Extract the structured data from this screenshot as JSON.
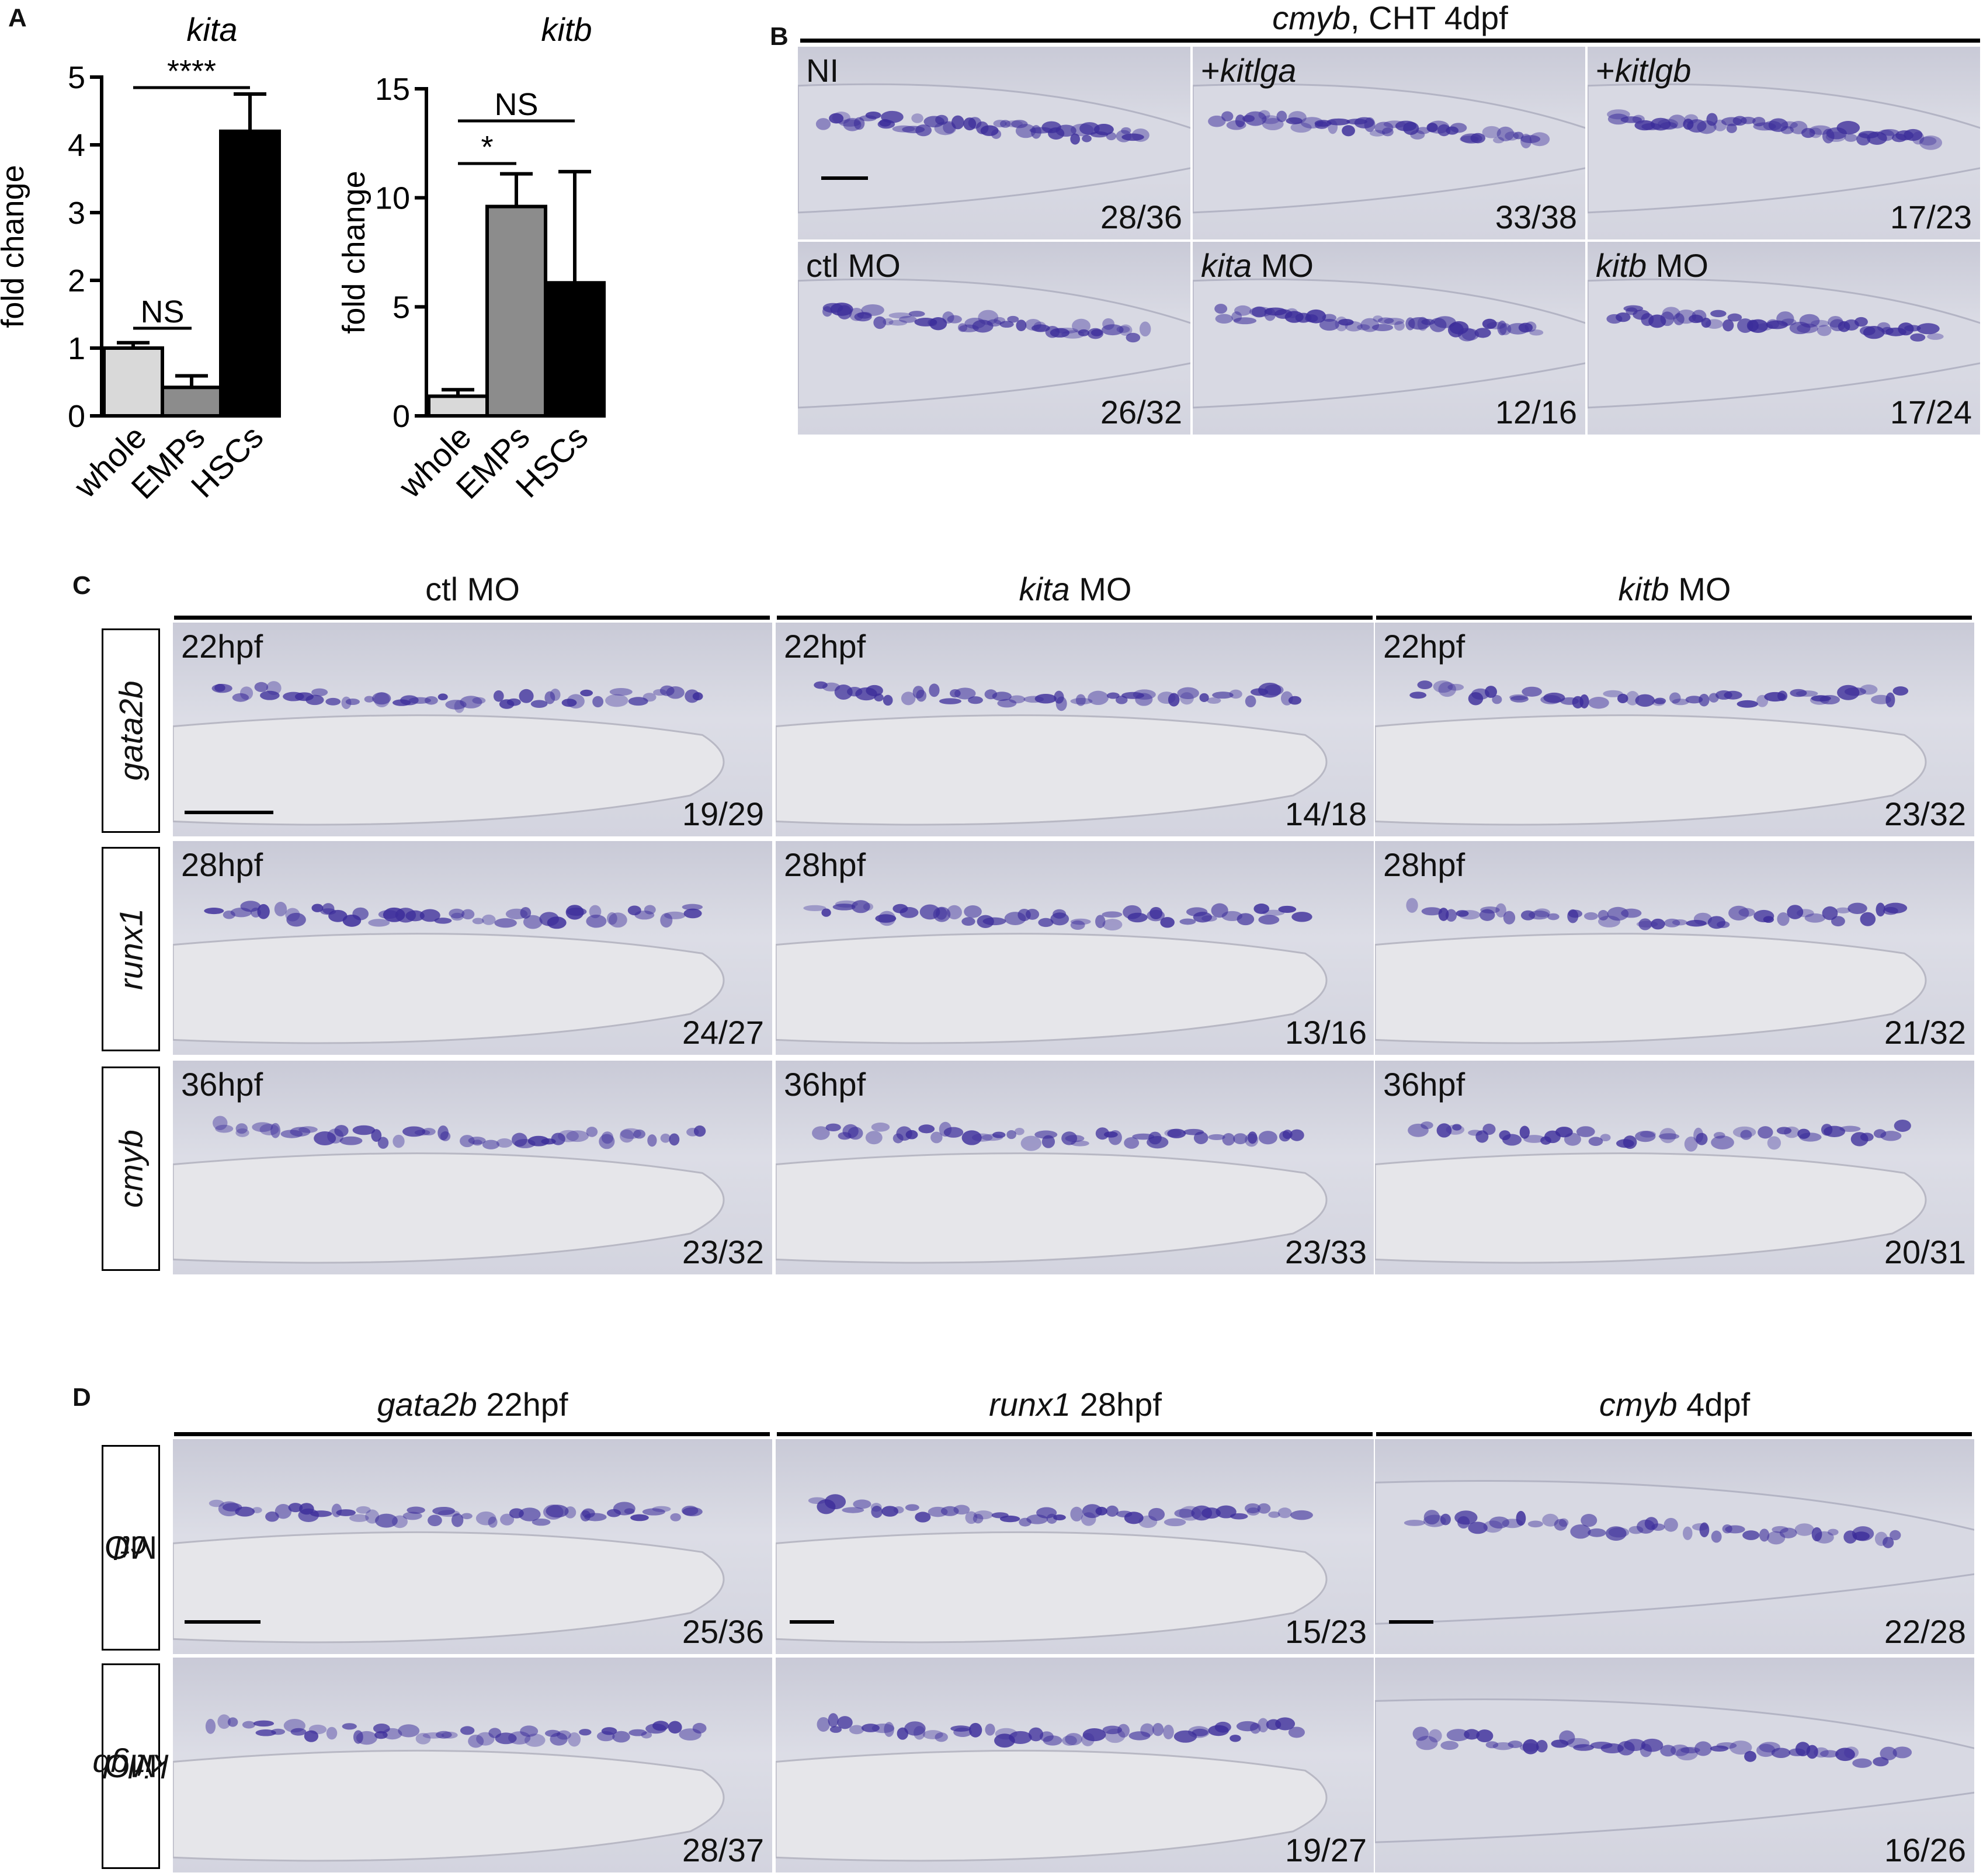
{
  "panel_labels": {
    "a": "A",
    "b": "B",
    "c": "C",
    "d": "D"
  },
  "chart_data": [
    {
      "type": "bar",
      "title": "kita",
      "ylabel": "fold change",
      "categories": [
        "whole",
        "EMPs",
        "HSCs"
      ],
      "values": [
        1.0,
        0.42,
        4.2
      ],
      "errors": [
        0.08,
        0.17,
        0.55
      ],
      "ylim": [
        0,
        5
      ],
      "yticks": [
        "0",
        "1",
        "2",
        "3",
        "4",
        "5"
      ],
      "bar_colors": [
        "#d9d9d9",
        "#8c8c8c",
        "#000000"
      ],
      "annotations": [
        {
          "text": "NS",
          "from": 0,
          "to": 1
        },
        {
          "text": "****",
          "from": 0,
          "to": 2
        }
      ]
    },
    {
      "type": "bar",
      "title": "kitb",
      "ylabel": "fold change",
      "categories": [
        "whole",
        "EMPs",
        "HSCs"
      ],
      "values": [
        0.9,
        9.6,
        6.1
      ],
      "errors": [
        0.3,
        1.5,
        5.1
      ],
      "ylim": [
        0,
        15
      ],
      "yticks": [
        "0",
        "5",
        "10",
        "15"
      ],
      "bar_colors": [
        "#d9d9d9",
        "#8c8c8c",
        "#000000"
      ],
      "annotations": [
        {
          "text": "*",
          "from": 0,
          "to": 1
        },
        {
          "text": "NS",
          "from": 0,
          "to": 2
        }
      ]
    }
  ],
  "panel_b": {
    "title_gene": "cmyb",
    "title_rest": ", CHT 4dpf",
    "tiles": [
      {
        "pre": "",
        "gene": "",
        "label": "NI",
        "post": "",
        "count": "28/36"
      },
      {
        "pre": "+",
        "gene": "kitlga",
        "label": "",
        "post": "",
        "count": "33/38"
      },
      {
        "pre": "+",
        "gene": "kitlgb",
        "label": "",
        "post": "",
        "count": "17/23"
      },
      {
        "pre": "",
        "gene": "",
        "label": "ctl MO",
        "post": "",
        "count": "26/32"
      },
      {
        "pre": "",
        "gene": "kita",
        "label": "",
        "post": " MO",
        "count": "12/16"
      },
      {
        "pre": "",
        "gene": "kitb",
        "label": "",
        "post": " MO",
        "count": "17/24"
      }
    ]
  },
  "panel_c": {
    "columns": [
      {
        "gene": "",
        "rest": "ctl MO"
      },
      {
        "gene": "kita",
        "rest": " MO"
      },
      {
        "gene": "kitb",
        "rest": " MO"
      }
    ],
    "rows": [
      {
        "gene": "gata2b",
        "stage": "22hpf",
        "counts": [
          "19/29",
          "14/18",
          "23/32"
        ]
      },
      {
        "gene": "runx1",
        "stage": "28hpf",
        "counts": [
          "24/27",
          "13/16",
          "21/32"
        ]
      },
      {
        "gene": "cmyb",
        "stage": "36hpf",
        "counts": [
          "23/32",
          "23/33",
          "20/31"
        ]
      }
    ]
  },
  "panel_d": {
    "columns": [
      {
        "gene": "gata2b",
        "stage": " 22hpf"
      },
      {
        "gene": "runx1",
        "stage": " 28hpf"
      },
      {
        "gene": "cmyb",
        "stage": " 4dpf"
      }
    ],
    "rows": [
      {
        "gene": "ctl",
        "rest": " MO",
        "counts": [
          "25/36",
          "15/23",
          "22/28"
        ]
      },
      {
        "gene": "kitlgb",
        "rest": " MO",
        "counts": [
          "28/37",
          "19/27",
          "16/26"
        ]
      }
    ]
  }
}
